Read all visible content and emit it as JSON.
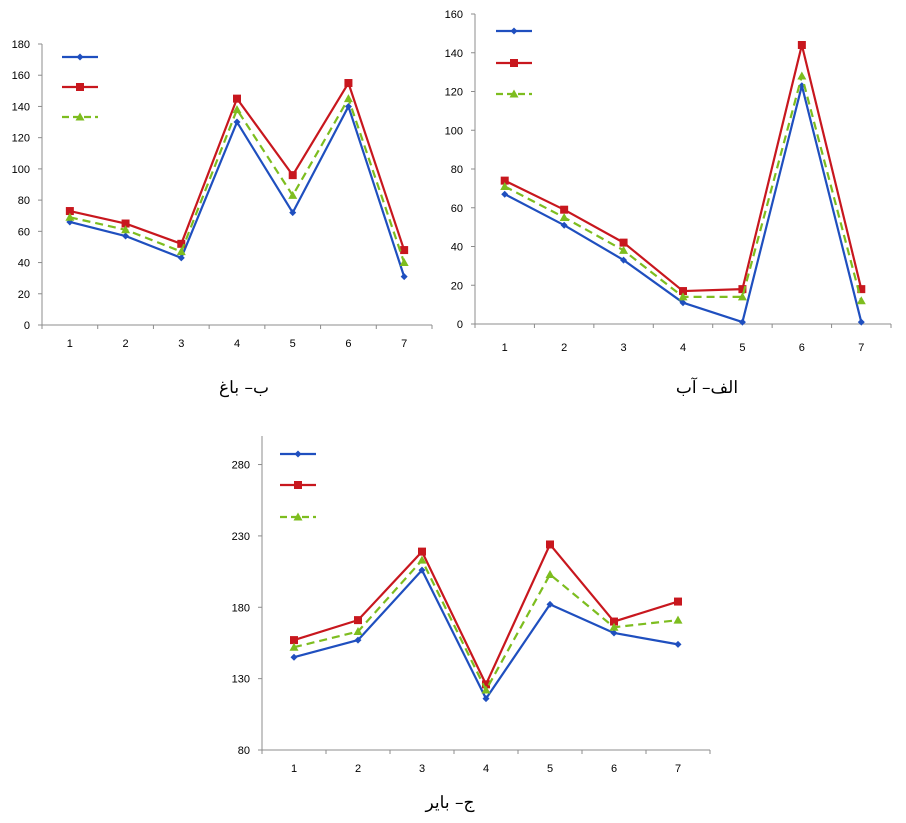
{
  "chart_data": [
    {
      "type": "line",
      "caption": "ب– باغ",
      "categories": [
        "1",
        "2",
        "3",
        "4",
        "5",
        "6",
        "7"
      ],
      "ylim": [
        0,
        180
      ],
      "yticks": [
        0,
        20,
        40,
        60,
        80,
        100,
        120,
        140,
        160,
        180
      ],
      "series": [
        {
          "color": "#1f4fbf",
          "marker": "diamond",
          "dash": false,
          "values": [
            66,
            57,
            43,
            130,
            72,
            140,
            31
          ]
        },
        {
          "color": "#c8171e",
          "marker": "square",
          "dash": false,
          "values": [
            73,
            65,
            52,
            145,
            96,
            155,
            48
          ]
        },
        {
          "color": "#7dbd1f",
          "marker": "triangle",
          "dash": true,
          "values": [
            69,
            61,
            47,
            138,
            83,
            145,
            40
          ]
        }
      ]
    },
    {
      "type": "line",
      "caption": "الف– آب",
      "categories": [
        "1",
        "2",
        "3",
        "4",
        "5",
        "6",
        "7"
      ],
      "ylim": [
        0,
        160
      ],
      "yticks": [
        0,
        20,
        40,
        60,
        80,
        100,
        120,
        140,
        160
      ],
      "series": [
        {
          "color": "#1f4fbf",
          "marker": "diamond",
          "dash": false,
          "values": [
            67,
            51,
            33,
            11,
            1,
            123,
            1
          ]
        },
        {
          "color": "#c8171e",
          "marker": "square",
          "dash": false,
          "values": [
            74,
            59,
            42,
            17,
            18,
            144,
            18
          ]
        },
        {
          "color": "#7dbd1f",
          "marker": "triangle",
          "dash": true,
          "values": [
            71,
            55,
            38,
            14,
            14,
            128,
            12
          ]
        }
      ]
    },
    {
      "type": "line",
      "caption": "ج– بایر",
      "categories": [
        "1",
        "2",
        "3",
        "4",
        "5",
        "6",
        "7"
      ],
      "ylim": [
        80,
        300
      ],
      "yticks": [
        80,
        130,
        180,
        230,
        280
      ],
      "series": [
        {
          "color": "#1f4fbf",
          "marker": "diamond",
          "dash": false,
          "values": [
            145,
            157,
            206,
            116,
            182,
            162,
            154
          ]
        },
        {
          "color": "#c8171e",
          "marker": "square",
          "dash": false,
          "values": [
            157,
            171,
            219,
            126,
            224,
            170,
            184
          ]
        },
        {
          "color": "#7dbd1f",
          "marker": "triangle",
          "dash": true,
          "values": [
            152,
            163,
            213,
            122,
            203,
            166,
            171
          ]
        }
      ]
    }
  ]
}
